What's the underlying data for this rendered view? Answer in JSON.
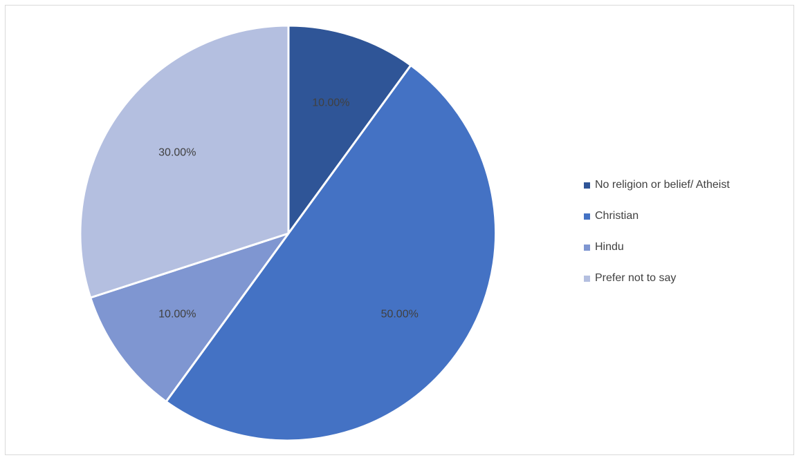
{
  "chart_data": {
    "type": "pie",
    "title": "",
    "categories": [
      "No religion or belief/ Atheist",
      "Christian",
      "Hindu",
      "Prefer not to say"
    ],
    "values": [
      10.0,
      50.0,
      10.0,
      30.0
    ],
    "data_labels": [
      "10.00%",
      "50.00%",
      "10.00%",
      "30.00%"
    ],
    "colors": [
      "#2f5597",
      "#4472c4",
      "#7f96d1",
      "#b4bfe0"
    ],
    "start_angle_deg": 0,
    "direction": "clockwise",
    "legend_position": "right"
  }
}
